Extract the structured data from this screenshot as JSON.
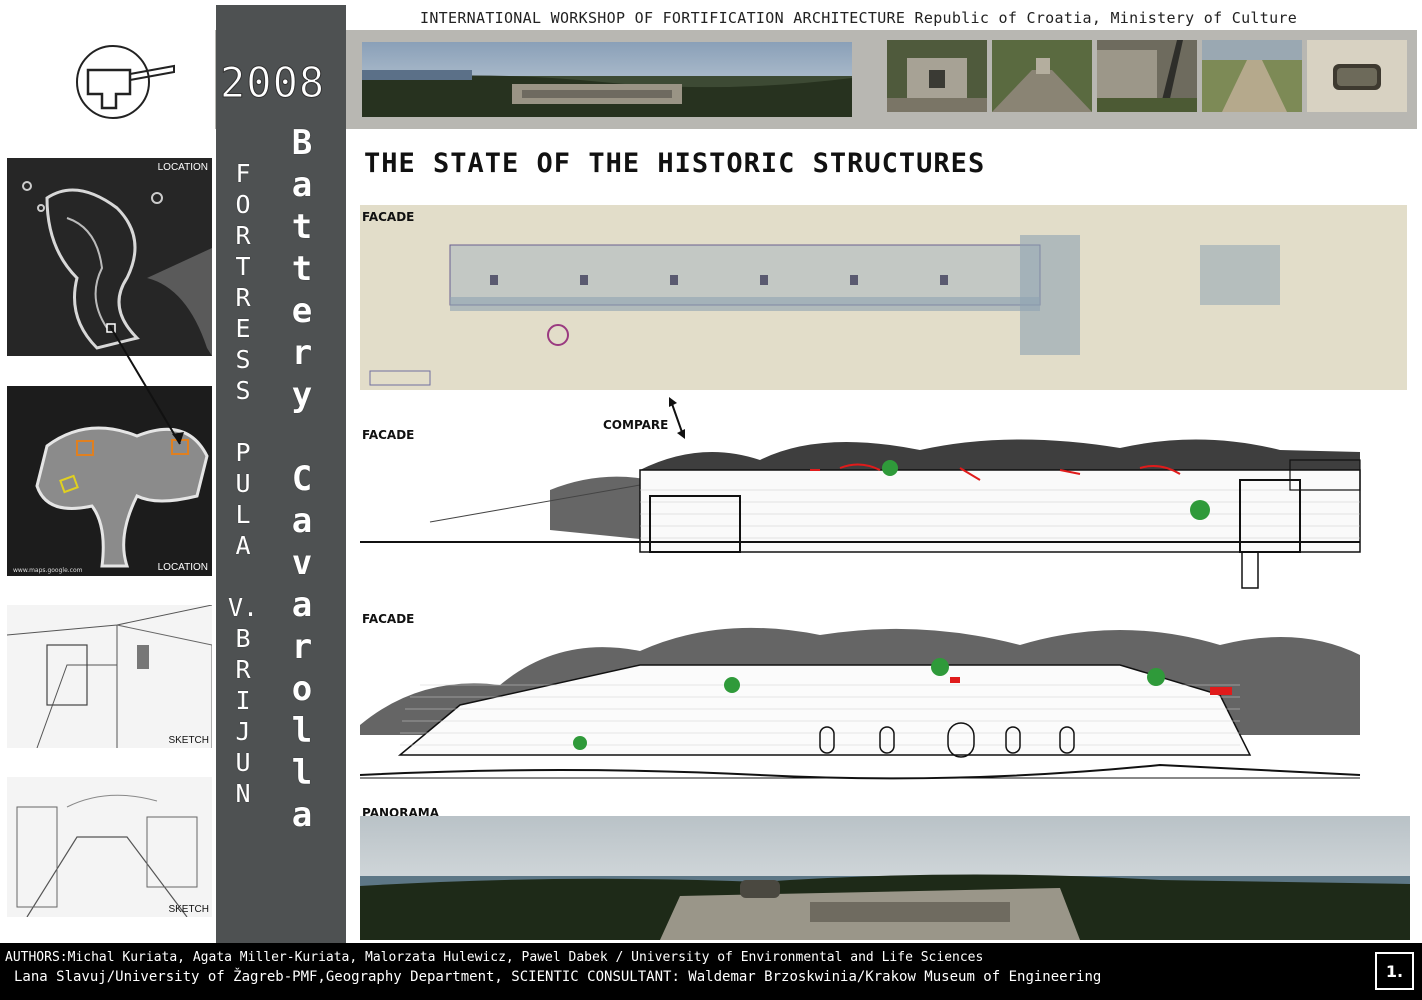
{
  "header": {
    "text": "INTERNATIONAL WORKSHOP OF FORTIFICATION ARCHITECTURE  Republic of Croatia, Ministery of Culture"
  },
  "logo": {
    "icon": "fortification-symbol-icon"
  },
  "year": "2008",
  "side_titles": {
    "fortress_letters": [
      "F",
      "O",
      "R",
      "T",
      "R",
      "E",
      "S",
      "S",
      "",
      "P",
      "U",
      "L",
      "A",
      "",
      "V.",
      "B",
      "R",
      "I",
      "J",
      "U",
      "N"
    ],
    "battery_letters": [
      "B",
      "a",
      "t",
      "t",
      "e",
      "r",
      "y",
      "",
      "C",
      "a",
      "v",
      "a",
      "r",
      "o",
      "l",
      "l",
      "a"
    ]
  },
  "thumbnails": [
    {
      "label": "LOCATION"
    },
    {
      "label": "LOCATION",
      "credit": "www.maps.google.com"
    },
    {
      "label": "SKETCH"
    },
    {
      "label": "SKETCH"
    }
  ],
  "section_title": "THE STATE OF THE HISTORIC STRUCTURES",
  "drawings": {
    "facade_historic": "FACADE",
    "facade_section": "FACADE",
    "compare": "COMPARE",
    "facade_elevation": "FACADE",
    "panorama": "PANORAMA"
  },
  "footer": {
    "line1": "AUTHORS:Michal Kuriata, Agata Miller-Kuriata, Malorzata Hulewicz, Pawel Dabek / University of Environmental and Life Sciences",
    "line2": "Lana Slavuj/University of Žagreb-PMF,Geography Department,  SCIENTIC CONSULTANT: Waldemar Brzoskwinia/Krakow Museum of Engineering",
    "page_number": "1."
  },
  "colors": {
    "dark_column": "#4e5152",
    "top_band": "#b8b7b2",
    "damage_red": "#e01b1b",
    "vegetation_green": "#2f9a3a"
  }
}
